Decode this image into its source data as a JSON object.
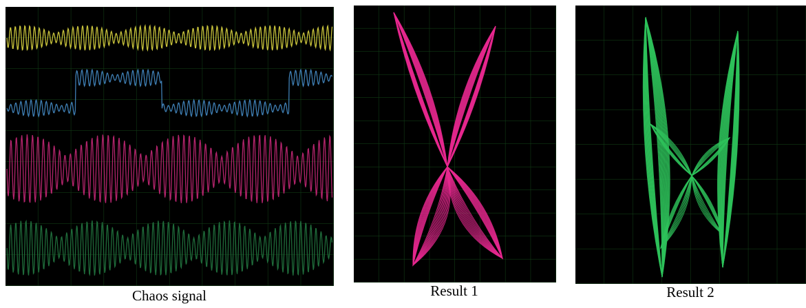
{
  "panels": [
    {
      "caption": "Chaos signal"
    },
    {
      "caption": "Result 1"
    },
    {
      "caption": "Result 2"
    }
  ]
}
